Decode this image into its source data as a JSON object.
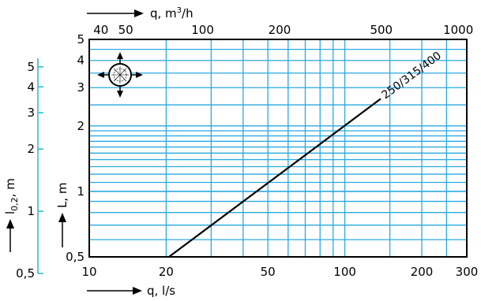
{
  "colors": {
    "grid": "#2aa9e0",
    "cyan_axis": "#2bb6c8",
    "line": "#000000",
    "frame": "#000000"
  },
  "icons": {
    "compass": "air-diffuser-compass-icon"
  },
  "chart_data": {
    "type": "line",
    "log_scale": {
      "x": true,
      "y": true
    },
    "grid": true,
    "x_bottom": {
      "label": "q, l/s",
      "range": [
        10,
        300
      ],
      "ticks": [
        10,
        20,
        50,
        100,
        200,
        300
      ],
      "tick_labels": [
        "10",
        "20",
        "50",
        "100",
        "200",
        "300"
      ]
    },
    "x_top": {
      "label": "q, m",
      "label_sup": "3",
      "label_suffix": "/h",
      "range": [
        36,
        1080
      ],
      "ticks": [
        40,
        50,
        100,
        200,
        500,
        1000
      ],
      "tick_labels": [
        "40",
        "50",
        "100",
        "200",
        "500",
        "1000"
      ]
    },
    "y_left": {
      "label": "L, m",
      "range": [
        0.5,
        5
      ],
      "ticks": [
        0.5,
        1,
        2,
        3,
        4,
        5
      ],
      "tick_labels": [
        "0,5",
        "1",
        "2",
        "3",
        "4",
        "5"
      ]
    },
    "y_outer": {
      "label_main": "l",
      "label_sub": "0,2",
      "label_suffix": ", m",
      "range": [
        0.5,
        5.5
      ],
      "ticks": [
        0.5,
        1,
        2,
        3,
        4,
        5
      ],
      "tick_labels": [
        "0,5",
        "1",
        "2",
        "3",
        "4",
        "5"
      ]
    },
    "series": [
      {
        "name": "250/315/400",
        "x": [
          20.5,
          270
        ],
        "y": [
          0.5,
          4.8
        ]
      }
    ]
  }
}
